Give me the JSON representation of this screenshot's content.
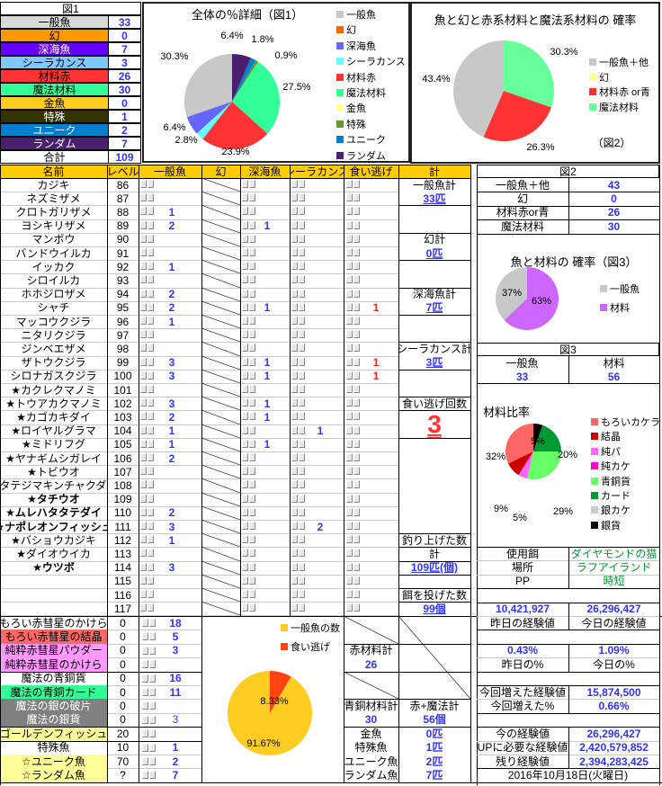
{
  "summary": {
    "title": "図1",
    "total_label": "合計",
    "total": 109,
    "items": [
      {
        "label": "一般魚",
        "value": 33,
        "bg": "#d9d9d9",
        "fg": "#000"
      },
      {
        "label": "幻",
        "value": 0,
        "bg": "#ff9900",
        "fg": "#000"
      },
      {
        "label": "深海魚",
        "value": 7,
        "bg": "#6600ff",
        "fg": "#fff"
      },
      {
        "label": "シーラカンス",
        "value": 3,
        "bg": "#80c8ff",
        "fg": "#000"
      },
      {
        "label": "材料赤",
        "value": 26,
        "bg": "#ff3333",
        "fg": "#000"
      },
      {
        "label": "魔法材料",
        "value": 30,
        "bg": "#33ff99",
        "fg": "#000"
      },
      {
        "label": "金魚",
        "value": 0,
        "bg": "#ffcc22",
        "fg": "#000"
      },
      {
        "label": "特殊",
        "value": 1,
        "bg": "#333300",
        "fg": "#fff"
      },
      {
        "label": "ユニーク",
        "value": 2,
        "bg": "#0080cc",
        "fg": "#fff"
      },
      {
        "label": "ランダム",
        "value": 7,
        "bg": "#4b1f6f",
        "fg": "#fff"
      }
    ]
  },
  "chart_data": [
    {
      "type": "pie",
      "title": "全体の％詳細（図1）",
      "categories": [
        "一般魚",
        "幻",
        "深海魚",
        "シーラカンス",
        "材料赤",
        "魔法材料",
        "金魚",
        "特殊",
        "ユニーク",
        "ランダム"
      ],
      "values": [
        33,
        0,
        7,
        3,
        26,
        30,
        0,
        1,
        2,
        7
      ],
      "labels": [
        "30.3%",
        "",
        "6.4%",
        "2.8%",
        "23.9%",
        "27.5%",
        "",
        "0.9%",
        "1.8%",
        "6.4%"
      ],
      "colors": [
        "#c8c8c8",
        "#ff6600",
        "#6666ff",
        "#66ffff",
        "#ff3333",
        "#33ff99",
        "#ffff99",
        "#669933",
        "#0080cc",
        "#4b1f6f"
      ],
      "legend": "right"
    },
    {
      "type": "pie",
      "title": "魚と幻と赤系材料と魔法系材料の 確率",
      "note": "（図2）",
      "categories": [
        "一般魚＋他",
        "幻",
        "材料赤 or青",
        "魔法材料"
      ],
      "values": [
        43,
        0,
        26,
        30
      ],
      "labels": [
        "43.4%",
        "",
        "26.3%",
        "30.3%"
      ],
      "colors": [
        "#c8c8c8",
        "#ffff99",
        "#ff3333",
        "#66ff99"
      ],
      "legend": "right"
    },
    {
      "type": "pie",
      "title": "魚と材料の 確率（図3）",
      "categories": [
        "一般魚",
        "材料"
      ],
      "values": [
        33,
        56
      ],
      "labels": [
        "37%",
        "63%"
      ],
      "colors": [
        "#c8c8c8",
        "#cc66ff"
      ],
      "legend": "right"
    },
    {
      "type": "pie",
      "title": "材料比率",
      "categories": [
        "もろいカケラ",
        "結晶",
        "純パ",
        "純カケ",
        "青銅貨",
        "カード",
        "銀カケ",
        "銀貨"
      ],
      "values": [
        18,
        5,
        3,
        0,
        16,
        11,
        0,
        3
      ],
      "labels": [
        "32%",
        "9%",
        "5%",
        "",
        "29%",
        "20%",
        "",
        "5%"
      ],
      "colors": [
        "#ff6666",
        "#cc0000",
        "#ff66ff",
        "#ff00cc",
        "#66ff66",
        "#009933",
        "#cccccc",
        "#000000"
      ],
      "legend": "right"
    },
    {
      "type": "pie",
      "title": "",
      "categories": [
        "一般魚の数",
        "食い逃げ"
      ],
      "values": [
        33,
        3
      ],
      "labels": [
        "91.67%",
        "8.33%"
      ],
      "colors": [
        "#ffcc22",
        "#ff4411"
      ],
      "legend": "top-right"
    }
  ],
  "main": {
    "headers": [
      "名前",
      "レベル",
      "一般魚",
      "幻",
      "深海魚",
      "シーラカンス",
      "食い逃げ",
      "計"
    ],
    "rows": [
      {
        "name": "カジキ",
        "lv": 86
      },
      {
        "name": "ネズミザメ",
        "lv": 87
      },
      {
        "name": "クロトガリザメ",
        "lv": 88,
        "a": 1
      },
      {
        "name": "ヨシキリザメ",
        "lv": 89,
        "a": 2,
        "s": 1
      },
      {
        "name": "マンボウ",
        "lv": 90
      },
      {
        "name": "バンドウイルカ",
        "lv": 91
      },
      {
        "name": "イッカク",
        "lv": 92,
        "a": 1
      },
      {
        "name": "シロイルカ",
        "lv": 93
      },
      {
        "name": "ホホジロザメ",
        "lv": 94,
        "a": 2
      },
      {
        "name": "シャチ",
        "lv": 95,
        "a": 2,
        "s": 1,
        "k": 1
      },
      {
        "name": "マッコウクジラ",
        "lv": 96,
        "a": 1
      },
      {
        "name": "ニタリクジラ",
        "lv": 97
      },
      {
        "name": "ジンベエザメ",
        "lv": 98
      },
      {
        "name": "ザトウクジラ",
        "lv": 99,
        "a": 3,
        "s": 1,
        "k": 1
      },
      {
        "name": "シロナガスクジラ",
        "lv": 100,
        "a": 3,
        "s": 1,
        "k": 1
      },
      {
        "name": "★カクレクマノミ",
        "lv": 101
      },
      {
        "name": "★トウアカクマノミ",
        "lv": 102,
        "a": 3,
        "s": 1
      },
      {
        "name": "★カゴカキダイ",
        "lv": 103,
        "a": 2,
        "s": 1
      },
      {
        "name": "★ロイヤルグラマ",
        "lv": 104,
        "a": 1,
        "c": 1
      },
      {
        "name": "★ミドリフグ",
        "lv": 105,
        "a": 1,
        "s": 1
      },
      {
        "name": "★ヤナギムシガレイ",
        "lv": 106,
        "a": 2
      },
      {
        "name": "★トビウオ",
        "lv": 107
      },
      {
        "name": "★タテジマキンチャクダイ",
        "lv": 108
      },
      {
        "name": "★タチウオ",
        "lv": 109,
        "bold": true
      },
      {
        "name": "★ムレハタタテダイ",
        "lv": 110,
        "a": 2,
        "bold": true
      },
      {
        "name": "★ナポレオンフィッシュ",
        "lv": 111,
        "a": 3,
        "c": 2,
        "bold": true
      },
      {
        "name": "★バショウカジキ",
        "lv": 112,
        "a": 1
      },
      {
        "name": "★ダイオウイカ",
        "lv": 113
      },
      {
        "name": "★ウツボ",
        "lv": 114,
        "a": 3,
        "bold": true
      },
      {
        "name": "",
        "lv": 115
      },
      {
        "name": "",
        "lv": 116
      },
      {
        "name": "",
        "lv": 117
      }
    ],
    "totals": [
      {
        "row": 0,
        "text": "一般魚計"
      },
      {
        "row": 1,
        "text": "33匹",
        "num": true
      },
      {
        "row": 4,
        "text": "幻計"
      },
      {
        "row": 5,
        "text": "0匹",
        "num": true
      },
      {
        "row": 8,
        "text": "深海魚計"
      },
      {
        "row": 9,
        "text": "7匹",
        "num": true
      },
      {
        "row": 12,
        "text": "シーラカンス計"
      },
      {
        "row": 13,
        "text": "3匹",
        "num": true
      },
      {
        "row": 16,
        "text": "食い逃げ回数"
      },
      {
        "row": 26,
        "text": "釣り上げた数"
      },
      {
        "row": 27,
        "text": "計"
      },
      {
        "row": 28,
        "text": "109匹(個)",
        "num": true
      },
      {
        "row": 30,
        "text": "餌を投げた数"
      },
      {
        "row": 31,
        "text": "99個",
        "num": true
      }
    ],
    "escape_count": "3"
  },
  "materials": [
    {
      "name": "もろい赤彗星のかけら",
      "v": "0",
      "n": "18",
      "bg": "#fff",
      "fg": "#000"
    },
    {
      "name": "もろい赤彗星の結晶",
      "v": "0",
      "n": "5",
      "bg": "#ff6666",
      "fg": "#000"
    },
    {
      "name": "純粋赤彗星パウダー",
      "v": "0",
      "n": "3",
      "bg": "#ff99ff",
      "fg": "#000"
    },
    {
      "name": "純粋赤彗星のかけら",
      "v": "0",
      "n": "",
      "bg": "#ff99ff",
      "fg": "#000"
    },
    {
      "name": "魔法の青銅貨",
      "v": "0",
      "n": "16",
      "bg": "#fff",
      "fg": "#000"
    },
    {
      "name": "魔法の青銅カード",
      "v": "0",
      "n": "11",
      "bg": "#33ff99",
      "fg": "#000"
    },
    {
      "name": "魔法の銀の破片",
      "v": "0",
      "n": "",
      "bg": "#808080",
      "fg": "#fff"
    },
    {
      "name": "魔法の銀貨",
      "v": "0",
      "n": "3",
      "bg": "#808080",
      "fg": "#fff",
      "light": true
    },
    {
      "name": "ゴールデンフィッシュ",
      "v": "20",
      "n": "",
      "bg": "#ffff99",
      "fg": "#000"
    },
    {
      "name": "特殊魚",
      "v": "10",
      "n": "1",
      "bg": "#fff",
      "fg": "#000"
    },
    {
      "name": "☆ユニーク魚",
      "v": "70",
      "n": "2",
      "bg": "#ffff99",
      "fg": "#000"
    },
    {
      "name": "☆ランダム魚",
      "v": "?",
      "n": "7",
      "bg": "#ffff99",
      "fg": "#000"
    }
  ],
  "bottom_totals": {
    "red_label": "赤材料計",
    "red": "26",
    "bronze_label": "青銅材料計",
    "bronze": "30",
    "sum_label": "赤+魔法計",
    "sum": "56個",
    "fish": [
      {
        "label": "金魚",
        "v": "0匹"
      },
      {
        "label": "特殊魚",
        "v": "1匹"
      },
      {
        "label": "ユニーク魚",
        "v": "2匹"
      },
      {
        "label": "ランダム魚",
        "v": "7匹"
      }
    ]
  },
  "fig2_table": {
    "title": "図2",
    "rows": [
      {
        "label": "一般魚＋他",
        "v": "43"
      },
      {
        "label": "幻",
        "v": "0"
      },
      {
        "label": "材料赤or青",
        "v": "26"
      },
      {
        "label": "魔法材料",
        "v": "30"
      }
    ]
  },
  "fig3_table": {
    "title": "図3",
    "labels": [
      "一般魚",
      "材料"
    ],
    "values": [
      "33",
      "56"
    ]
  },
  "info": {
    "bait_label": "使用餌",
    "bait": "ダイヤモンドの猫",
    "place_label": "場所",
    "place": "ラフアイランド",
    "pp_label": "PP",
    "pp": "時短",
    "exp_yesterday": "10,421,927",
    "exp_today": "26,296,427",
    "exp_yesterday_label": "昨日の経験値",
    "exp_today_label": "今日の経験値",
    "pct_yesterday": "0.43%",
    "pct_today": "1.09%",
    "pct_yesterday_label": "昨日の%",
    "pct_today_label": "今日の%",
    "gain_label": "今回増えた経験値",
    "gain": "15,874,500",
    "gain_pct_label": "今回増えた%",
    "gain_pct": "0.66%",
    "now_label": "今の経験値",
    "now": "26,296,427",
    "need_label": "UPに必要な経験値",
    "need": "2,420,579,852",
    "left_label": "残り経験値",
    "left": "2,394,283,425",
    "date": "2016年10月18日(火曜日)"
  }
}
